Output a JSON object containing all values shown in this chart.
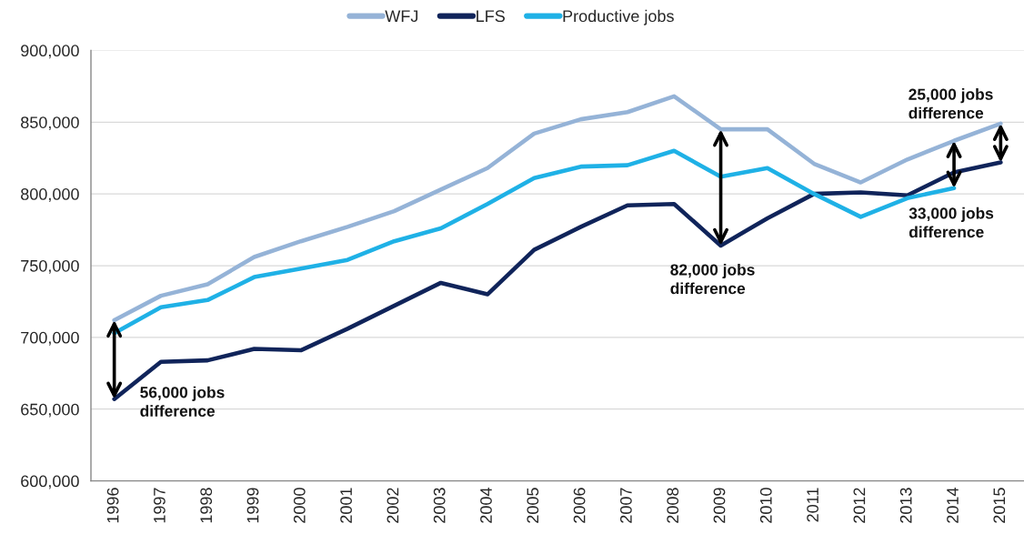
{
  "chart_data": {
    "type": "line",
    "categories": [
      "1996",
      "1997",
      "1998",
      "1999",
      "2000",
      "2001",
      "2002",
      "2003",
      "2004",
      "2005",
      "2006",
      "2007",
      "2008",
      "2009",
      "2010",
      "2011",
      "2012",
      "2013",
      "2014",
      "2015"
    ],
    "series": [
      {
        "name": "WFJ",
        "color": "#95b3d7",
        "values": [
          712000,
          729000,
          737000,
          756000,
          767000,
          777000,
          788000,
          803000,
          818000,
          842000,
          852000,
          857000,
          868000,
          845000,
          845000,
          821000,
          808000,
          824000,
          837000,
          849000
        ]
      },
      {
        "name": "LFS",
        "color": "#10245a",
        "values": [
          657000,
          683000,
          684000,
          692000,
          691000,
          706000,
          722000,
          738000,
          730000,
          761000,
          777000,
          792000,
          793000,
          764000,
          783000,
          800000,
          801000,
          799000,
          815000,
          822000
        ]
      },
      {
        "name": "Productive jobs",
        "color": "#1fb1e6",
        "values": [
          703000,
          721000,
          726000,
          742000,
          748000,
          754000,
          767000,
          776000,
          793000,
          811000,
          819000,
          820000,
          830000,
          812000,
          818000,
          800000,
          784000,
          797000,
          804000,
          null
        ]
      }
    ],
    "ylim": [
      600000,
      900000
    ],
    "yticks": [
      {
        "value": 600000,
        "label": "600,000"
      },
      {
        "value": 650000,
        "label": "650,000"
      },
      {
        "value": 700000,
        "label": "700,000"
      },
      {
        "value": 750000,
        "label": "750,000"
      },
      {
        "value": 800000,
        "label": "800,000"
      },
      {
        "value": 850000,
        "label": "850,000"
      },
      {
        "value": 900000,
        "label": "900,000"
      }
    ],
    "grid": "y",
    "legend": "top",
    "line_style": "solid",
    "annotations": [
      {
        "text": "56,000 jobs\ndifference",
        "x": "1996",
        "y": 657000
      },
      {
        "text": "82,000 jobs\ndifference",
        "x": "2009",
        "y": 764000
      },
      {
        "text": "33,000 jobs\ndifference",
        "x": "2014",
        "y": 804000
      },
      {
        "text": "25,000 jobs\ndifference",
        "x": "2015",
        "y": 849000
      }
    ]
  }
}
